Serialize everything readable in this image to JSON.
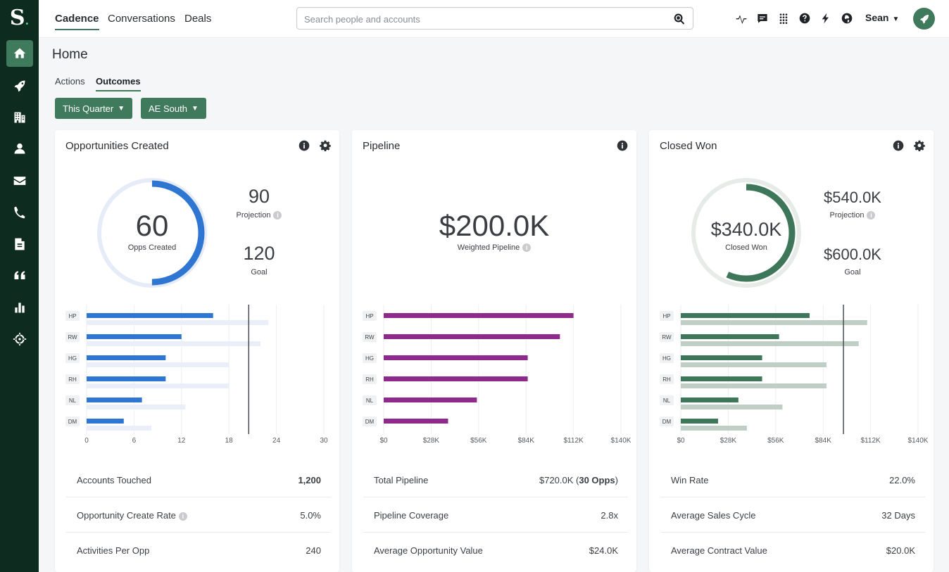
{
  "app": {
    "logo": "S",
    "logo_dot": "."
  },
  "sidebar": {
    "items": [
      {
        "name": "home-icon",
        "active": true
      },
      {
        "name": "rocket-icon"
      },
      {
        "name": "building-icon"
      },
      {
        "name": "person-icon"
      },
      {
        "name": "envelope-icon"
      },
      {
        "name": "phone-icon"
      },
      {
        "name": "document-icon"
      },
      {
        "name": "quote-icon"
      },
      {
        "name": "bar-chart-icon"
      },
      {
        "name": "crosshair-icon"
      }
    ]
  },
  "header": {
    "nav": [
      "Cadence",
      "Conversations",
      "Deals"
    ],
    "search_placeholder": "Search people and accounts",
    "user": "Sean"
  },
  "page": {
    "title": "Home",
    "tabs": [
      "Actions",
      "Outcomes"
    ],
    "active_tab": "Outcomes",
    "filters": [
      "This Quarter",
      "AE South"
    ]
  },
  "cards": [
    {
      "title": "Opportunities Created",
      "main_value": "60",
      "main_label": "Opps Created",
      "projection_value": "90",
      "projection_label": "Projection",
      "goal_value": "120",
      "goal_label": "Goal",
      "ring_fraction": 0.5,
      "stats": [
        {
          "label": "Accounts Touched",
          "value": "1,200"
        },
        {
          "label": "Opportunity Create Rate",
          "value": "5.0%"
        },
        {
          "label": "Activities Per Opp",
          "value": "240"
        }
      ]
    },
    {
      "title": "Pipeline",
      "main_value": "$200.0K",
      "main_label": "Weighted Pipeline",
      "stats": [
        {
          "label": "Total Pipeline",
          "value": "$720.0K (",
          "value_bold": "30 Opps",
          "value_suffix": ")"
        },
        {
          "label": "Pipeline Coverage",
          "value": "2.8x"
        },
        {
          "label": "Average Opportunity Value",
          "value": "$24.0K"
        }
      ]
    },
    {
      "title": "Closed Won",
      "main_value": "$340.0K",
      "main_label": "Closed Won",
      "projection_value": "$540.0K",
      "projection_label": "Projection",
      "goal_value": "$600.0K",
      "goal_label": "Goal",
      "ring_fraction": 0.567,
      "stats": [
        {
          "label": "Win Rate",
          "value": "22.0%"
        },
        {
          "label": "Average Sales Cycle",
          "value": "32 Days"
        },
        {
          "label": "Average Contract Value",
          "value": "$20.0K"
        }
      ]
    }
  ],
  "chart_data": [
    {
      "type": "bar",
      "orientation": "horizontal",
      "categories": [
        "HP",
        "RW",
        "HG",
        "RH",
        "NL",
        "DM"
      ],
      "series": [
        {
          "values": [
            16,
            12,
            10,
            10,
            7,
            4.7
          ],
          "color": "#2f76d2"
        },
        {
          "values": [
            23,
            22,
            18,
            18,
            12.5,
            8.2
          ],
          "color": "#e9eef8"
        }
      ],
      "goal_line": 20.5,
      "xlim": [
        0,
        30
      ],
      "xticks": [
        "0",
        "6",
        "12",
        "18",
        "24",
        "30"
      ],
      "xtick_values": [
        0,
        6,
        12,
        18,
        24,
        30
      ]
    },
    {
      "type": "bar",
      "orientation": "horizontal",
      "categories": [
        "HP",
        "RW",
        "HG",
        "RH",
        "NL",
        "DM"
      ],
      "series": [
        {
          "values": [
            112,
            104,
            85,
            85,
            55,
            38
          ],
          "color": "#8e2a8c"
        }
      ],
      "xlim": [
        0,
        140
      ],
      "xticks": [
        "$0",
        "$28K",
        "$56K",
        "$84K",
        "$112K",
        "$140K"
      ],
      "xtick_values": [
        0,
        28,
        56,
        84,
        112,
        140
      ]
    },
    {
      "type": "bar",
      "orientation": "horizontal",
      "categories": [
        "HP",
        "RW",
        "HG",
        "RH",
        "NL",
        "DM"
      ],
      "series": [
        {
          "values": [
            76,
            58,
            48,
            48,
            34,
            22
          ],
          "color": "#3d7658"
        },
        {
          "values": [
            110,
            105,
            86,
            86,
            60,
            39
          ],
          "color": "#bfcfc6"
        }
      ],
      "goal_line": 96,
      "xlim": [
        0,
        140
      ],
      "xticks": [
        "$0",
        "$28K",
        "$56K",
        "$84K",
        "$112K",
        "$140K"
      ],
      "xtick_values": [
        0,
        28,
        56,
        84,
        112,
        140
      ]
    }
  ]
}
